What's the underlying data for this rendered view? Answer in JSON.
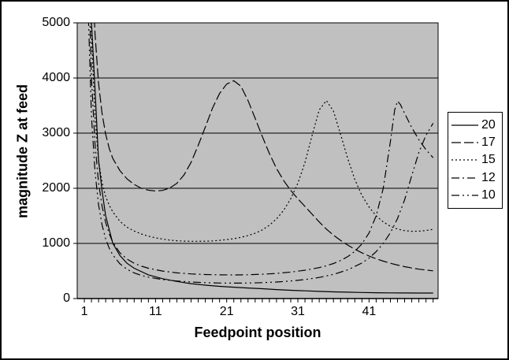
{
  "chart_data": {
    "type": "line",
    "title": "",
    "xlabel": "Feedpoint position",
    "ylabel": "magnitude Z at feed",
    "xlim": [
      1,
      51
    ],
    "ylim": [
      0,
      5000
    ],
    "xticks": [
      1,
      11,
      21,
      31,
      41
    ],
    "minor_xtick_step": 1,
    "minor_xtick_range": [
      1,
      50
    ],
    "yticks": [
      0,
      1000,
      2000,
      3000,
      4000,
      5000
    ],
    "grid": "horizontal",
    "plot_bg": "#c0c0c0",
    "line_color": "#000000",
    "legend_position": "right",
    "series": [
      {
        "name": "20",
        "dash": "solid",
        "points": [
          [
            1,
            20000
          ],
          [
            2,
            5000
          ],
          [
            2.5,
            3800
          ],
          [
            3,
            2500
          ],
          [
            3.5,
            1950
          ],
          [
            4,
            1500
          ],
          [
            5,
            1000
          ],
          [
            6,
            780
          ],
          [
            7,
            640
          ],
          [
            8,
            550
          ],
          [
            10,
            430
          ],
          [
            12,
            360
          ],
          [
            14,
            310
          ],
          [
            16,
            270
          ],
          [
            18,
            243
          ],
          [
            20,
            222
          ],
          [
            22,
            205
          ],
          [
            24,
            192
          ],
          [
            26,
            178
          ],
          [
            28,
            163
          ],
          [
            30,
            150
          ],
          [
            32,
            140
          ],
          [
            34,
            130
          ],
          [
            36,
            122
          ],
          [
            38,
            115
          ],
          [
            40,
            110
          ],
          [
            42,
            106
          ],
          [
            44,
            103
          ],
          [
            46,
            101
          ],
          [
            48,
            100
          ],
          [
            50,
            100
          ]
        ]
      },
      {
        "name": "17",
        "dash": "long-dash",
        "points": [
          [
            1,
            22000
          ],
          [
            1.5,
            9000
          ],
          [
            2,
            6200
          ],
          [
            2.5,
            4800
          ],
          [
            3,
            3900
          ],
          [
            3.5,
            3350
          ],
          [
            4,
            2980
          ],
          [
            4.5,
            2720
          ],
          [
            5,
            2540
          ],
          [
            6,
            2320
          ],
          [
            7,
            2170
          ],
          [
            8,
            2070
          ],
          [
            9,
            2000
          ],
          [
            10,
            1965
          ],
          [
            11,
            1950
          ],
          [
            12,
            1962
          ],
          [
            13,
            2005
          ],
          [
            14,
            2090
          ],
          [
            15,
            2240
          ],
          [
            16,
            2470
          ],
          [
            17,
            2780
          ],
          [
            18,
            3110
          ],
          [
            19,
            3450
          ],
          [
            20,
            3720
          ],
          [
            21,
            3890
          ],
          [
            22,
            3950
          ],
          [
            23,
            3850
          ],
          [
            24,
            3590
          ],
          [
            25,
            3270
          ],
          [
            26,
            2940
          ],
          [
            27,
            2630
          ],
          [
            28,
            2360
          ],
          [
            29,
            2140
          ],
          [
            30,
            1960
          ],
          [
            31,
            1810
          ],
          [
            32,
            1670
          ],
          [
            33,
            1530
          ],
          [
            34,
            1390
          ],
          [
            35,
            1260
          ],
          [
            36,
            1150
          ],
          [
            37,
            1055
          ],
          [
            38,
            970
          ],
          [
            39,
            895
          ],
          [
            40,
            830
          ],
          [
            41,
            772
          ],
          [
            42,
            722
          ],
          [
            43,
            678
          ],
          [
            44,
            640
          ],
          [
            45,
            607
          ],
          [
            46,
            578
          ],
          [
            47,
            554
          ],
          [
            48,
            533
          ],
          [
            49,
            517
          ],
          [
            50,
            503
          ]
        ]
      },
      {
        "name": "15",
        "dash": "dot",
        "points": [
          [
            1,
            18000
          ],
          [
            1.5,
            7500
          ],
          [
            2,
            4800
          ],
          [
            2.5,
            3300
          ],
          [
            3,
            2500
          ],
          [
            3.5,
            2100
          ],
          [
            4,
            1850
          ],
          [
            4.5,
            1690
          ],
          [
            5,
            1570
          ],
          [
            6,
            1400
          ],
          [
            7,
            1295
          ],
          [
            8,
            1225
          ],
          [
            9,
            1172
          ],
          [
            10,
            1132
          ],
          [
            11,
            1100
          ],
          [
            12,
            1078
          ],
          [
            13,
            1060
          ],
          [
            14,
            1049
          ],
          [
            15,
            1042
          ],
          [
            16,
            1038
          ],
          [
            17,
            1038
          ],
          [
            18,
            1040
          ],
          [
            19,
            1045
          ],
          [
            20,
            1055
          ],
          [
            21,
            1068
          ],
          [
            22,
            1086
          ],
          [
            23,
            1110
          ],
          [
            24,
            1143
          ],
          [
            25,
            1185
          ],
          [
            26,
            1245
          ],
          [
            27,
            1330
          ],
          [
            28,
            1445
          ],
          [
            29,
            1600
          ],
          [
            30,
            1810
          ],
          [
            31,
            2090
          ],
          [
            32,
            2470
          ],
          [
            33,
            2960
          ],
          [
            34,
            3420
          ],
          [
            35,
            3590
          ],
          [
            36,
            3400
          ],
          [
            37,
            2980
          ],
          [
            38,
            2540
          ],
          [
            39,
            2160
          ],
          [
            40,
            1870
          ],
          [
            41,
            1660
          ],
          [
            42,
            1500
          ],
          [
            43,
            1390
          ],
          [
            44,
            1310
          ],
          [
            45,
            1260
          ],
          [
            46,
            1232
          ],
          [
            47,
            1220
          ],
          [
            48,
            1222
          ],
          [
            49,
            1235
          ],
          [
            50,
            1255
          ]
        ]
      },
      {
        "name": "12",
        "dash": "dash-dot",
        "points": [
          [
            1,
            16000
          ],
          [
            1.5,
            6400
          ],
          [
            2,
            4000
          ],
          [
            2.5,
            2800
          ],
          [
            3,
            2100
          ],
          [
            3.5,
            1670
          ],
          [
            4,
            1380
          ],
          [
            4.5,
            1170
          ],
          [
            5,
            1020
          ],
          [
            6,
            830
          ],
          [
            7,
            715
          ],
          [
            8,
            640
          ],
          [
            9,
            588
          ],
          [
            10,
            550
          ],
          [
            12,
            498
          ],
          [
            14,
            466
          ],
          [
            16,
            447
          ],
          [
            18,
            436
          ],
          [
            20,
            430
          ],
          [
            22,
            429
          ],
          [
            24,
            432
          ],
          [
            26,
            441
          ],
          [
            28,
            456
          ],
          [
            30,
            480
          ],
          [
            32,
            514
          ],
          [
            33,
            536
          ],
          [
            34,
            562
          ],
          [
            35,
            595
          ],
          [
            36,
            636
          ],
          [
            37,
            690
          ],
          [
            38,
            760
          ],
          [
            39,
            855
          ],
          [
            40,
            990
          ],
          [
            41,
            1190
          ],
          [
            42,
            1500
          ],
          [
            43,
            2000
          ],
          [
            44,
            2850
          ],
          [
            44.6,
            3420
          ],
          [
            45,
            3580
          ],
          [
            45.4,
            3520
          ],
          [
            46,
            3360
          ],
          [
            47,
            3100
          ],
          [
            48,
            2880
          ],
          [
            49,
            2700
          ],
          [
            50,
            2555
          ]
        ]
      },
      {
        "name": "10",
        "dash": "dash-dot-dot",
        "points": [
          [
            1,
            14000
          ],
          [
            1.5,
            5400
          ],
          [
            2,
            3300
          ],
          [
            2.5,
            2300
          ],
          [
            3,
            1700
          ],
          [
            3.5,
            1330
          ],
          [
            4,
            1080
          ],
          [
            4.5,
            910
          ],
          [
            5,
            790
          ],
          [
            6,
            630
          ],
          [
            7,
            530
          ],
          [
            8,
            465
          ],
          [
            9,
            420
          ],
          [
            10,
            388
          ],
          [
            12,
            345
          ],
          [
            14,
            318
          ],
          [
            16,
            300
          ],
          [
            18,
            289
          ],
          [
            20,
            282
          ],
          [
            22,
            280
          ],
          [
            24,
            282
          ],
          [
            26,
            288
          ],
          [
            28,
            300
          ],
          [
            30,
            318
          ],
          [
            32,
            345
          ],
          [
            34,
            383
          ],
          [
            36,
            438
          ],
          [
            38,
            520
          ],
          [
            40,
            645
          ],
          [
            41,
            735
          ],
          [
            42,
            850
          ],
          [
            43,
            1000
          ],
          [
            44,
            1195
          ],
          [
            45,
            1450
          ],
          [
            46,
            1790
          ],
          [
            47,
            2230
          ],
          [
            48,
            2650
          ],
          [
            49,
            2960
          ],
          [
            50,
            3180
          ]
        ]
      }
    ]
  }
}
